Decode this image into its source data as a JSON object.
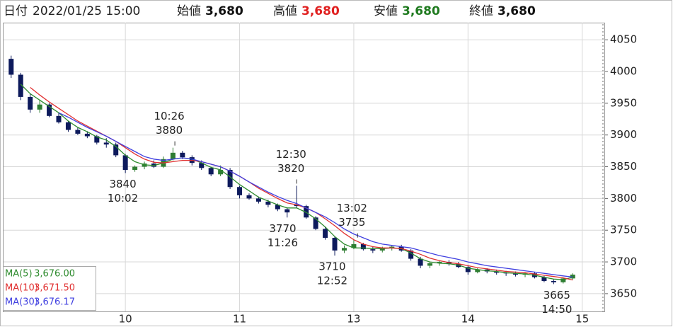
{
  "header": {
    "date_label": "日付",
    "datetime": "2022/01/25 15:00",
    "fields": [
      {
        "label": "始値",
        "value": "3,680",
        "color": "#111111"
      },
      {
        "label": "高値",
        "value": "3,680",
        "color": "#e02020"
      },
      {
        "label": "安値",
        "value": "3,680",
        "color": "#1f7a1f"
      },
      {
        "label": "終値",
        "value": "3,680",
        "color": "#111111"
      }
    ]
  },
  "chart_data": {
    "type": "candlestick",
    "x": [
      0,
      5,
      10,
      15,
      20,
      25,
      30,
      35,
      40,
      45,
      50,
      55,
      60,
      65,
      70,
      75,
      80,
      85,
      90,
      95,
      100,
      105,
      110,
      115,
      120,
      125,
      130,
      135,
      140,
      145,
      150,
      155,
      160,
      165,
      170,
      175,
      180,
      185,
      190,
      195,
      200,
      205,
      210,
      215,
      220,
      225,
      230,
      235,
      240,
      245,
      250,
      255,
      260,
      265,
      270,
      275,
      280,
      285,
      290,
      295
    ],
    "open": [
      4020,
      3995,
      3960,
      3940,
      3948,
      3930,
      3920,
      3908,
      3902,
      3898,
      3888,
      3885,
      3868,
      3845,
      3850,
      3855,
      3850,
      3862,
      3872,
      3865,
      3856,
      3848,
      3838,
      3845,
      3818,
      3805,
      3800,
      3795,
      3790,
      3783,
      3790,
      3788,
      3770,
      3752,
      3738,
      3718,
      3722,
      3728,
      3720,
      3718,
      3722,
      3724,
      3718,
      3705,
      3694,
      3698,
      3700,
      3697,
      3692,
      3684,
      3688,
      3685,
      3683,
      3682,
      3680,
      3682,
      3676,
      3670,
      3668,
      3674
    ],
    "high": [
      4025,
      3998,
      3965,
      3955,
      3950,
      3935,
      3922,
      3912,
      3906,
      3900,
      3895,
      3888,
      3870,
      3852,
      3858,
      3860,
      3866,
      3880,
      3875,
      3868,
      3860,
      3850,
      3852,
      3848,
      3820,
      3808,
      3803,
      3798,
      3792,
      3786,
      3820,
      3790,
      3772,
      3755,
      3740,
      3726,
      3735,
      3730,
      3724,
      3724,
      3726,
      3727,
      3720,
      3708,
      3700,
      3702,
      3703,
      3700,
      3695,
      3690,
      3690,
      3688,
      3686,
      3685,
      3684,
      3684,
      3678,
      3672,
      3675,
      3682
    ],
    "low": [
      3990,
      3955,
      3935,
      3935,
      3928,
      3918,
      3905,
      3900,
      3895,
      3885,
      3880,
      3865,
      3840,
      3842,
      3846,
      3848,
      3848,
      3860,
      3862,
      3852,
      3845,
      3835,
      3835,
      3815,
      3800,
      3798,
      3792,
      3786,
      3780,
      3770,
      3785,
      3768,
      3750,
      3735,
      3710,
      3714,
      3720,
      3718,
      3714,
      3715,
      3718,
      3716,
      3702,
      3690,
      3690,
      3694,
      3694,
      3690,
      3680,
      3682,
      3682,
      3680,
      3678,
      3677,
      3676,
      3674,
      3668,
      3665,
      3666,
      3672
    ],
    "close": [
      3995,
      3960,
      3940,
      3948,
      3930,
      3920,
      3908,
      3902,
      3898,
      3888,
      3885,
      3868,
      3845,
      3850,
      3855,
      3850,
      3862,
      3872,
      3865,
      3856,
      3848,
      3838,
      3845,
      3818,
      3805,
      3800,
      3795,
      3790,
      3783,
      3778,
      3788,
      3770,
      3752,
      3738,
      3718,
      3722,
      3728,
      3720,
      3718,
      3722,
      3724,
      3718,
      3705,
      3694,
      3698,
      3700,
      3697,
      3692,
      3684,
      3688,
      3685,
      3683,
      3682,
      3680,
      3682,
      3676,
      3670,
      3668,
      3674,
      3680
    ],
    "up_color": "#2e7d32",
    "down_color": "#0d1a5c",
    "xlim": [
      -4,
      312
    ],
    "ylim": [
      3622,
      4077
    ],
    "xticks": [
      {
        "value": 60,
        "label": "10"
      },
      {
        "value": 120,
        "label": "11"
      },
      {
        "value": 180,
        "label": "13"
      },
      {
        "value": 240,
        "label": "14"
      },
      {
        "value": 300,
        "label": "15"
      }
    ],
    "yticks": [
      3650,
      3700,
      3750,
      3800,
      3850,
      3900,
      3950,
      4000,
      4050
    ],
    "grid": true,
    "legend": "bottom-left",
    "ma_lines": [
      {
        "name": "MA(5)",
        "color": "#2e8b2e",
        "latest": {
          "value": 3676,
          "label": "3,676.00"
        },
        "values": [
          null,
          3980,
          3965,
          3955,
          3945,
          3935,
          3922,
          3912,
          3905,
          3897,
          3892,
          3882,
          3868,
          3858,
          3853,
          3852,
          3856,
          3862,
          3864,
          3862,
          3856,
          3849,
          3845,
          3834,
          3822,
          3812,
          3802,
          3796,
          3790,
          3785,
          3785,
          3778,
          3768,
          3755,
          3740,
          3728,
          3722,
          3722,
          3721,
          3721,
          3722,
          3721,
          3714,
          3705,
          3700,
          3698,
          3697,
          3695,
          3690,
          3688,
          3686,
          3685,
          3683,
          3682,
          3681,
          3679,
          3676,
          3673,
          3672,
          3676
        ]
      },
      {
        "name": "MA(10)",
        "color": "#e03030",
        "latest": {
          "value": 3671.5,
          "label": "3,671.50"
        },
        "values": [
          null,
          null,
          3975,
          3963,
          3952,
          3942,
          3932,
          3922,
          3914,
          3906,
          3898,
          3890,
          3880,
          3870,
          3862,
          3857,
          3856,
          3858,
          3860,
          3860,
          3858,
          3854,
          3850,
          3843,
          3835,
          3826,
          3816,
          3808,
          3800,
          3793,
          3790,
          3785,
          3778,
          3768,
          3757,
          3745,
          3735,
          3728,
          3724,
          3722,
          3722,
          3721,
          3717,
          3712,
          3706,
          3702,
          3699,
          3697,
          3694,
          3691,
          3689,
          3687,
          3685,
          3684,
          3683,
          3681,
          3679,
          3677,
          3675,
          3671.5
        ]
      },
      {
        "name": "MA(30)",
        "color": "#4040e0",
        "latest": {
          "value": 3676.17,
          "label": "3,676.17"
        },
        "values": [
          null,
          null,
          null,
          null,
          null,
          3935,
          3928,
          3920,
          3912,
          3905,
          3898,
          3890,
          3882,
          3874,
          3866,
          3862,
          3860,
          3862,
          3864,
          3862,
          3858,
          3854,
          3850,
          3843,
          3835,
          3826,
          3818,
          3810,
          3803,
          3797,
          3792,
          3785,
          3778,
          3771,
          3762,
          3752,
          3744,
          3738,
          3732,
          3728,
          3726,
          3724,
          3722,
          3718,
          3714,
          3710,
          3707,
          3704,
          3700,
          3697,
          3694,
          3692,
          3690,
          3688,
          3686,
          3684,
          3682,
          3680,
          3678,
          3676.17
        ]
      }
    ],
    "annotations": [
      {
        "time": "10:26",
        "value": 3880,
        "x": 86,
        "placement": "above"
      },
      {
        "time": "10:02",
        "value": 3840,
        "x": 62,
        "placement": "below"
      },
      {
        "time": "12:30",
        "value": 3820,
        "x": 150,
        "placement": "above"
      },
      {
        "time": "11:26",
        "value": 3770,
        "x": 146,
        "placement": "below"
      },
      {
        "time": "13:02",
        "value": 3735,
        "x": 182,
        "placement": "above"
      },
      {
        "time": "12:52",
        "value": 3710,
        "x": 172,
        "placement": "below"
      },
      {
        "time": "14:50",
        "value": 3665,
        "x": 290,
        "placement": "below"
      }
    ]
  }
}
